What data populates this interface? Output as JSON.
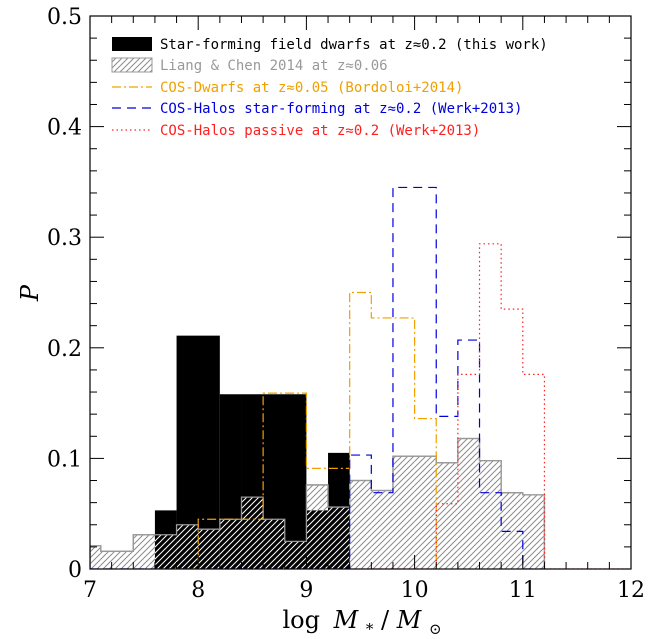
{
  "chart_data": {
    "type": "histogram",
    "xlabel_main": "log",
    "xlabel_var": "M",
    "xlabel_sub": "*",
    "xlabel_sep": "/",
    "xlabel_var2": "M",
    "xlabel_sub2": "⊙",
    "ylabel": "P",
    "xlim": [
      7,
      12
    ],
    "ylim": [
      0,
      0.5
    ],
    "x_ticks": [
      "7",
      "8",
      "9",
      "10",
      "11",
      "12"
    ],
    "y_ticks": [
      "0",
      "0.1",
      "0.2",
      "0.3",
      "0.4",
      "0.5"
    ],
    "x_minor_step": 0.2,
    "y_minor_step": 0.02,
    "legend_position": "top-left",
    "series": [
      {
        "name": "Star-forming field dwarfs at z≈0.2 (this work)",
        "style": "filled",
        "color": "#000000",
        "bins": [
          {
            "x0": 7.6,
            "x1": 7.8,
            "y": 0.053
          },
          {
            "x0": 7.8,
            "x1": 8.2,
            "y": 0.211
          },
          {
            "x0": 8.2,
            "x1": 8.4,
            "y": 0.158
          },
          {
            "x0": 8.4,
            "x1": 9.0,
            "y": 0.158
          },
          {
            "x0": 9.0,
            "x1": 9.2,
            "y": 0.053
          },
          {
            "x0": 9.2,
            "x1": 9.4,
            "y": 0.105
          }
        ]
      },
      {
        "name": "Liang & Chen 2014 at z≈0.06",
        "style": "hatched",
        "color": "#999999",
        "bins": [
          {
            "x0": 7.0,
            "x1": 7.1,
            "y": 0.021
          },
          {
            "x0": 7.1,
            "x1": 7.4,
            "y": 0.016
          },
          {
            "x0": 7.4,
            "x1": 7.6,
            "y": 0.031
          },
          {
            "x0": 7.6,
            "x1": 7.8,
            "y": 0.031
          },
          {
            "x0": 7.8,
            "x1": 8.0,
            "y": 0.04
          },
          {
            "x0": 8.0,
            "x1": 8.2,
            "y": 0.036
          },
          {
            "x0": 8.2,
            "x1": 8.4,
            "y": 0.045
          },
          {
            "x0": 8.4,
            "x1": 8.6,
            "y": 0.065
          },
          {
            "x0": 8.6,
            "x1": 8.8,
            "y": 0.045
          },
          {
            "x0": 8.8,
            "x1": 9.0,
            "y": 0.025
          },
          {
            "x0": 9.0,
            "x1": 9.2,
            "y": 0.076
          },
          {
            "x0": 9.2,
            "x1": 9.4,
            "y": 0.056
          },
          {
            "x0": 9.4,
            "x1": 9.6,
            "y": 0.08
          },
          {
            "x0": 9.6,
            "x1": 9.8,
            "y": 0.071
          },
          {
            "x0": 9.8,
            "x1": 10.0,
            "y": 0.102
          },
          {
            "x0": 10.0,
            "x1": 10.2,
            "y": 0.102
          },
          {
            "x0": 10.2,
            "x1": 10.4,
            "y": 0.096
          },
          {
            "x0": 10.4,
            "x1": 10.6,
            "y": 0.118
          },
          {
            "x0": 10.6,
            "x1": 10.8,
            "y": 0.098
          },
          {
            "x0": 10.8,
            "x1": 11.0,
            "y": 0.069
          },
          {
            "x0": 11.0,
            "x1": 11.2,
            "y": 0.067
          }
        ]
      },
      {
        "name": "COS-Dwarfs at z≈0.05 (Bordoloi+2014)",
        "style": "dashdot",
        "color": "#f0a000",
        "bins": [
          {
            "x0": 7.6,
            "x1": 8.0,
            "y": 0.0
          },
          {
            "x0": 8.0,
            "x1": 8.4,
            "y": 0.045
          },
          {
            "x0": 8.4,
            "x1": 8.6,
            "y": 0.045
          },
          {
            "x0": 8.6,
            "x1": 9.0,
            "y": 0.159
          },
          {
            "x0": 9.0,
            "x1": 9.2,
            "y": 0.091
          },
          {
            "x0": 9.2,
            "x1": 9.4,
            "y": 0.091
          },
          {
            "x0": 9.4,
            "x1": 9.6,
            "y": 0.25
          },
          {
            "x0": 9.6,
            "x1": 9.8,
            "y": 0.227
          },
          {
            "x0": 9.8,
            "x1": 10.0,
            "y": 0.227
          },
          {
            "x0": 10.0,
            "x1": 10.2,
            "y": 0.136
          }
        ]
      },
      {
        "name": "COS-Halos star-forming at z≈0.2 (Werk+2013)",
        "style": "dashed",
        "color": "#0000dd",
        "bins": [
          {
            "x0": 7.0,
            "x1": 9.4,
            "y": 0.0
          },
          {
            "x0": 9.4,
            "x1": 9.6,
            "y": 0.103
          },
          {
            "x0": 9.6,
            "x1": 9.8,
            "y": 0.069
          },
          {
            "x0": 9.8,
            "x1": 10.2,
            "y": 0.345
          },
          {
            "x0": 10.2,
            "x1": 10.4,
            "y": 0.138
          },
          {
            "x0": 10.4,
            "x1": 10.6,
            "y": 0.207
          },
          {
            "x0": 10.6,
            "x1": 10.8,
            "y": 0.069
          },
          {
            "x0": 10.8,
            "x1": 11.0,
            "y": 0.034
          },
          {
            "x0": 11.0,
            "x1": 11.2,
            "y": 0.0
          }
        ]
      },
      {
        "name": "COS-Halos passive at z≈0.2 (Werk+2013)",
        "style": "dotted",
        "color": "#ff2020",
        "bins": [
          {
            "x0": 9.4,
            "x1": 10.2,
            "y": 0.0
          },
          {
            "x0": 10.2,
            "x1": 10.4,
            "y": 0.059
          },
          {
            "x0": 10.4,
            "x1": 10.6,
            "y": 0.176
          },
          {
            "x0": 10.6,
            "x1": 10.8,
            "y": 0.294
          },
          {
            "x0": 10.8,
            "x1": 11.0,
            "y": 0.235
          },
          {
            "x0": 11.0,
            "x1": 11.2,
            "y": 0.176
          },
          {
            "x0": 11.2,
            "x1": 12.0,
            "y": 0.0
          }
        ]
      }
    ]
  }
}
